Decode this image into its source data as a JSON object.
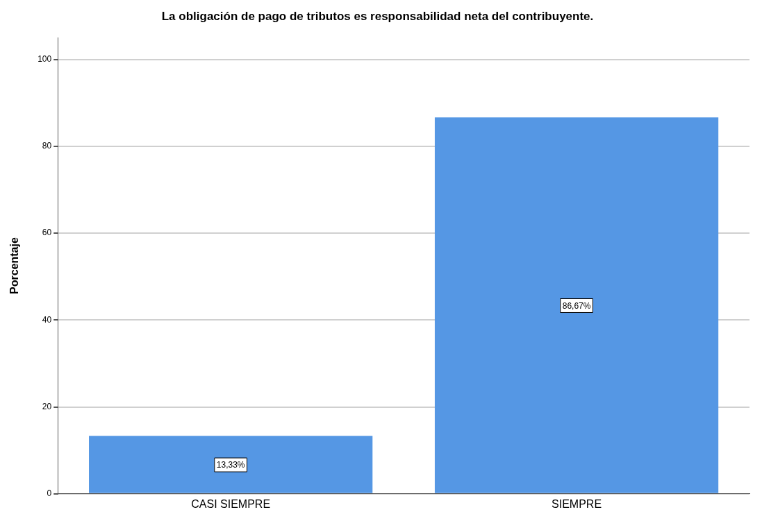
{
  "chart_data": {
    "type": "bar",
    "title": "La obligación de pago de tributos es responsabilidad neta del contribuyente.",
    "ylabel": "Porcentaje",
    "categories": [
      "CASI SIEMPRE",
      "SIEMPRE"
    ],
    "values": [
      13.33,
      86.67
    ],
    "color": "#5597e4",
    "value_labels": [
      "13,33%",
      "86,67%"
    ],
    "ylim": [
      0,
      105
    ],
    "yticks": [
      0,
      20,
      40,
      60,
      80,
      100
    ],
    "grid": "y",
    "legend": false
  }
}
